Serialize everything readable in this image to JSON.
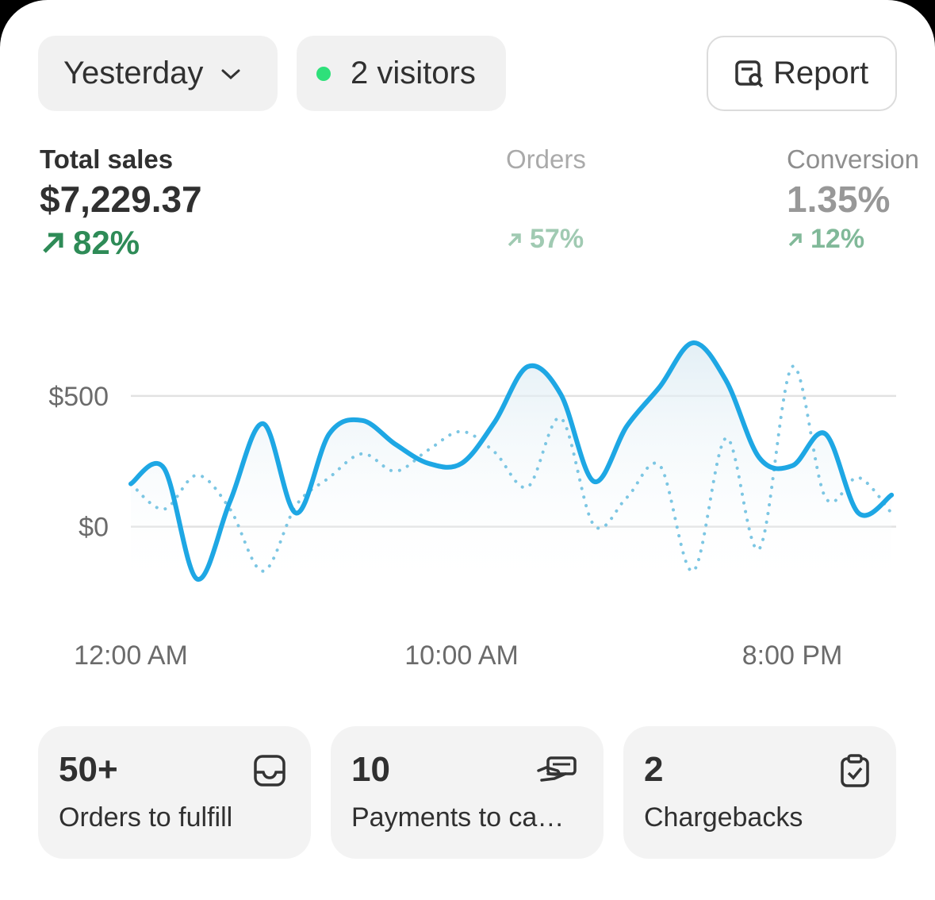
{
  "header": {
    "period": "Yesterday",
    "visitors": "2 visitors",
    "report": "Report"
  },
  "metrics": [
    {
      "label": "Total sales",
      "value": "$7,229.37",
      "change": "82%"
    },
    {
      "label": "Orders",
      "change": "57%"
    },
    {
      "label": "Conversion",
      "value": "1.35%",
      "change": "12%"
    }
  ],
  "chart_data": {
    "type": "line",
    "x": [
      0,
      1,
      2,
      3,
      4,
      5,
      6,
      7,
      8,
      9,
      10,
      11,
      12,
      13,
      14,
      15,
      16,
      17,
      18,
      19,
      20,
      21,
      22,
      23
    ],
    "series": [
      {
        "color": "#1ea7e4",
        "style": "solid",
        "fill": true,
        "values": [
          164,
          224,
          -200,
          97,
          394,
          52,
          355,
          406,
          315,
          242,
          242,
          400,
          612,
          506,
          173,
          385,
          536,
          703,
          558,
          264,
          233,
          355,
          52,
          121
        ]
      },
      {
        "color": "#7cc6e3",
        "style": "dotted",
        "fill": false,
        "values": [
          164,
          67,
          197,
          67,
          -170,
          82,
          188,
          279,
          212,
          294,
          364,
          285,
          152,
          415,
          6,
          112,
          233,
          -170,
          339,
          -85,
          612,
          112,
          188,
          52
        ]
      }
    ],
    "xlim": [
      0,
      23.14
    ],
    "ylim": [
      -250,
      800
    ],
    "xticks": [
      {
        "value": 0,
        "label": "12:00 AM"
      },
      {
        "value": 10,
        "label": "10:00 AM"
      },
      {
        "value": 20,
        "label": "8:00 PM"
      }
    ],
    "yticks": [
      {
        "value": 0,
        "label": "$0"
      },
      {
        "value": 500,
        "label": "$500"
      }
    ],
    "grid": true
  },
  "cards": [
    {
      "value": "50+",
      "label": "Orders to fulfill"
    },
    {
      "value": "10",
      "label": "Payments to ca…"
    },
    {
      "value": "2",
      "label": "Chargebacks"
    }
  ]
}
